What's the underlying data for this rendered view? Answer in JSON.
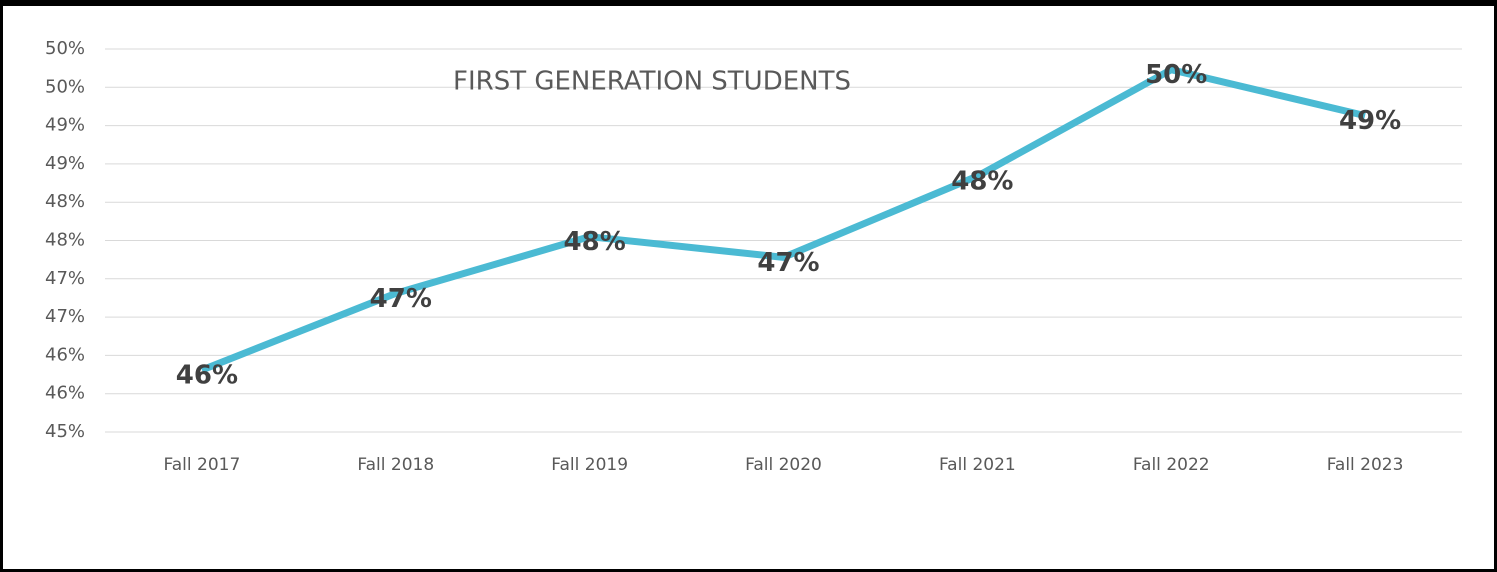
{
  "chart_data": {
    "type": "line",
    "title": "FIRST GENERATION STUDENTS",
    "categories": [
      "Fall 2017",
      "Fall 2018",
      "Fall 2019",
      "Fall 2020",
      "Fall 2021",
      "Fall 2022",
      "Fall 2023"
    ],
    "series": [
      {
        "name": "First Generation Students",
        "color": "#4bbad3",
        "values": [
          45.81,
          46.81,
          47.55,
          47.28,
          48.34,
          49.73,
          49.13
        ],
        "value_labels": [
          "46%",
          "47%",
          "48%",
          "47%",
          "48%",
          "50%",
          "49%"
        ]
      }
    ],
    "ylim": [
      45,
      50
    ],
    "yticks": [
      {
        "value": 45,
        "label": "45%"
      },
      {
        "value": 45.5,
        "label": "46%"
      },
      {
        "value": 46,
        "label": "46%"
      },
      {
        "value": 46.5,
        "label": "47%"
      },
      {
        "value": 47,
        "label": "47%"
      },
      {
        "value": 47.5,
        "label": "48%"
      },
      {
        "value": 48,
        "label": "48%"
      },
      {
        "value": 48.5,
        "label": "49%"
      },
      {
        "value": 49,
        "label": "49%"
      },
      {
        "value": 49.5,
        "label": "50%"
      },
      {
        "value": 50,
        "label": "50%"
      }
    ],
    "grid": true
  }
}
